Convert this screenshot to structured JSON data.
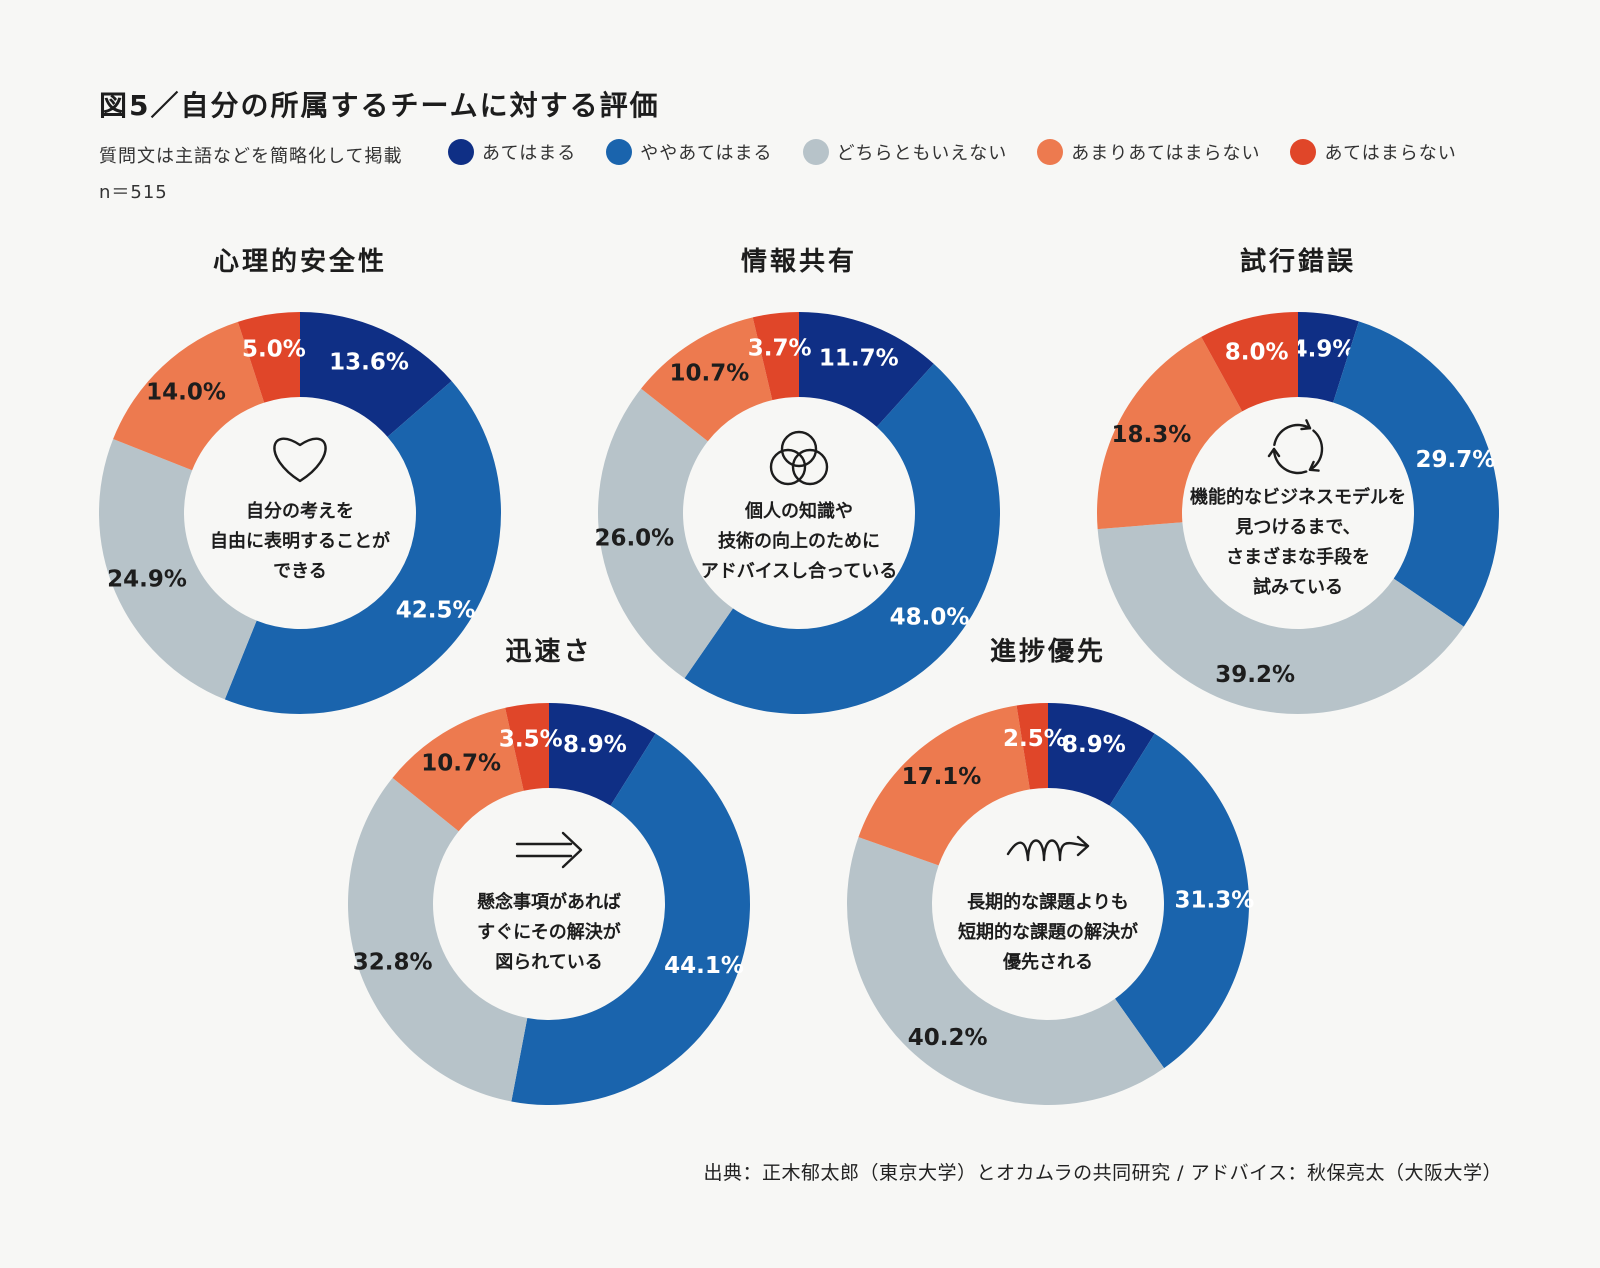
{
  "figure": {
    "title": "図5／自分の所属するチームに対する評価",
    "note": "質問文は主語などを簡略化して掲載",
    "n": "n＝515",
    "source": "出典：正木郁太郎（東京大学）とオカムラの共同研究 / アドバイス：秋保亮太（大阪大学）"
  },
  "colors": {
    "あてはまる": "#0f2f85",
    "ややあてはまる": "#1a64ad",
    "どちらともいえない": "#b7c3c9",
    "あまりあてはまらない": "#ed7a4f",
    "あてはまらない": "#e04629"
  },
  "legend": [
    {
      "label": "あてはまる",
      "color": "#0f2f85"
    },
    {
      "label": "ややあてはまる",
      "color": "#1a64ad"
    },
    {
      "label": "どちらともいえない",
      "color": "#b7c3c9"
    },
    {
      "label": "あまりあてはまらない",
      "color": "#ed7a4f"
    },
    {
      "label": "あてはまらない",
      "color": "#e04629"
    }
  ],
  "chart_data": [
    {
      "type": "pie",
      "title": "心理的安全性",
      "icon": "heart-icon",
      "center_text": [
        "自分の考えを",
        "自由に表明することが",
        "できる"
      ],
      "categories": [
        "あてはまる",
        "ややあてはまる",
        "どちらともいえない",
        "あまりあてはまらない",
        "あてはまらない"
      ],
      "values": [
        13.6,
        42.5,
        24.9,
        14.0,
        5.0
      ],
      "labels": [
        "13.6%",
        "42.5%",
        "24.9%",
        "14.0%",
        "5.0%"
      ]
    },
    {
      "type": "pie",
      "title": "情報共有",
      "icon": "overlapping-circles-icon",
      "center_text": [
        "個人の知識や",
        "技術の向上のために",
        "アドバイスし合っている"
      ],
      "categories": [
        "あてはまる",
        "ややあてはまる",
        "どちらともいえない",
        "あまりあてはまらない",
        "あてはまらない"
      ],
      "values": [
        11.7,
        48.0,
        26.0,
        10.7,
        3.7
      ],
      "labels": [
        "11.7%",
        "48.0%",
        "26.0%",
        "10.7%",
        "3.7%"
      ]
    },
    {
      "type": "pie",
      "title": "試行錯誤",
      "icon": "cycle-arrows-icon",
      "center_text": [
        "機能的なビジネスモデルを",
        "見つけるまで、",
        "さまざまな手段を",
        "試みている"
      ],
      "categories": [
        "あてはまる",
        "ややあてはまる",
        "どちらともいえない",
        "あまりあてはまらない",
        "あてはまらない"
      ],
      "values": [
        4.9,
        29.7,
        39.2,
        18.3,
        8.0
      ],
      "labels": [
        "4.9%",
        "29.7%",
        "39.2%",
        "18.3%",
        "8.0%"
      ]
    },
    {
      "type": "pie",
      "title": "迅速さ",
      "icon": "double-arrow-icon",
      "center_text": [
        "懸念事項があれば",
        "すぐにその解決が",
        "図られている"
      ],
      "categories": [
        "あてはまる",
        "ややあてはまる",
        "どちらともいえない",
        "あまりあてはまらない",
        "あてはまらない"
      ],
      "values": [
        8.9,
        44.1,
        32.8,
        10.7,
        3.5
      ],
      "labels": [
        "8.9%",
        "44.1%",
        "32.8%",
        "10.7%",
        "3.5%"
      ]
    },
    {
      "type": "pie",
      "title": "進捗優先",
      "icon": "loop-arrow-icon",
      "center_text": [
        "長期的な課題よりも",
        "短期的な課題の解決が",
        "優先される"
      ],
      "categories": [
        "あてはまる",
        "ややあてはまる",
        "どちらともいえない",
        "あまりあてはまらない",
        "あてはまらない"
      ],
      "values": [
        8.9,
        31.3,
        40.2,
        17.1,
        2.5
      ],
      "labels": [
        "8.9%",
        "31.3%",
        "40.2%",
        "17.1%",
        "2.5%"
      ]
    }
  ]
}
